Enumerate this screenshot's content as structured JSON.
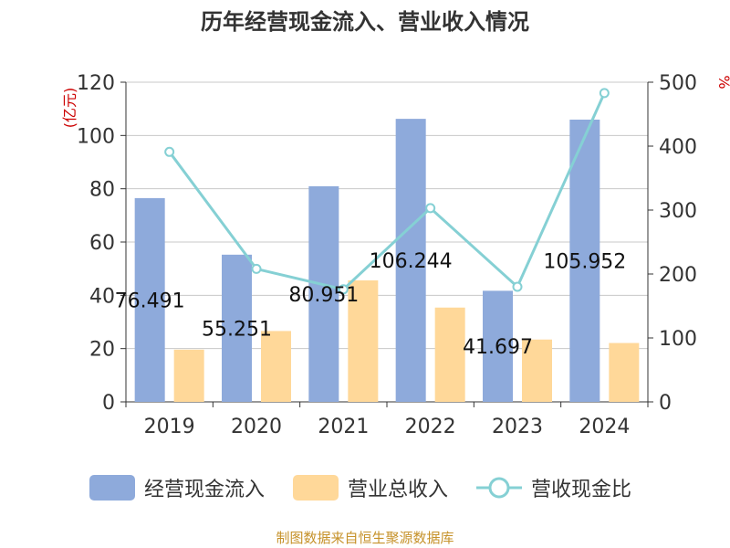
{
  "chart_data": {
    "type": "bar",
    "title": "历年经营现金流入、营业收入情况",
    "categories": [
      "2019",
      "2020",
      "2021",
      "2022",
      "2023",
      "2024"
    ],
    "y_left": {
      "unit_label": "(亿元)",
      "ylim": [
        0,
        120
      ],
      "ticks": [
        0,
        20,
        40,
        60,
        80,
        100,
        120
      ]
    },
    "y_right": {
      "unit_label": "%",
      "ylim": [
        0,
        500
      ],
      "ticks": [
        0,
        100,
        200,
        300,
        400,
        500
      ]
    },
    "series": [
      {
        "name": "经营现金流入",
        "type": "bar",
        "axis": "left",
        "color": "#8eaadb",
        "values": [
          76.491,
          55.251,
          80.951,
          106.244,
          41.697,
          105.952
        ],
        "data_labels": [
          "76.491",
          "55.251",
          "80.951",
          "106.244",
          "41.697",
          "105.952"
        ]
      },
      {
        "name": "营业总收入",
        "type": "bar",
        "axis": "left",
        "color": "#ffd899",
        "values": [
          19.6,
          26.6,
          45.6,
          35.4,
          23.4,
          22.1
        ]
      },
      {
        "name": "营收现金比",
        "type": "line",
        "axis": "right",
        "color": "#85d0d4",
        "values": [
          391,
          208,
          176,
          303,
          180,
          483
        ]
      }
    ],
    "grid": true,
    "legend_position": "bottom"
  },
  "legend": [
    {
      "label": "经营现金流入",
      "kind": "bar",
      "color": "#8eaadb"
    },
    {
      "label": "营业总收入",
      "kind": "bar",
      "color": "#ffd899"
    },
    {
      "label": "营收现金比",
      "kind": "line",
      "color": "#85d0d4"
    }
  ],
  "source": "制图数据来自恒生聚源数据库"
}
